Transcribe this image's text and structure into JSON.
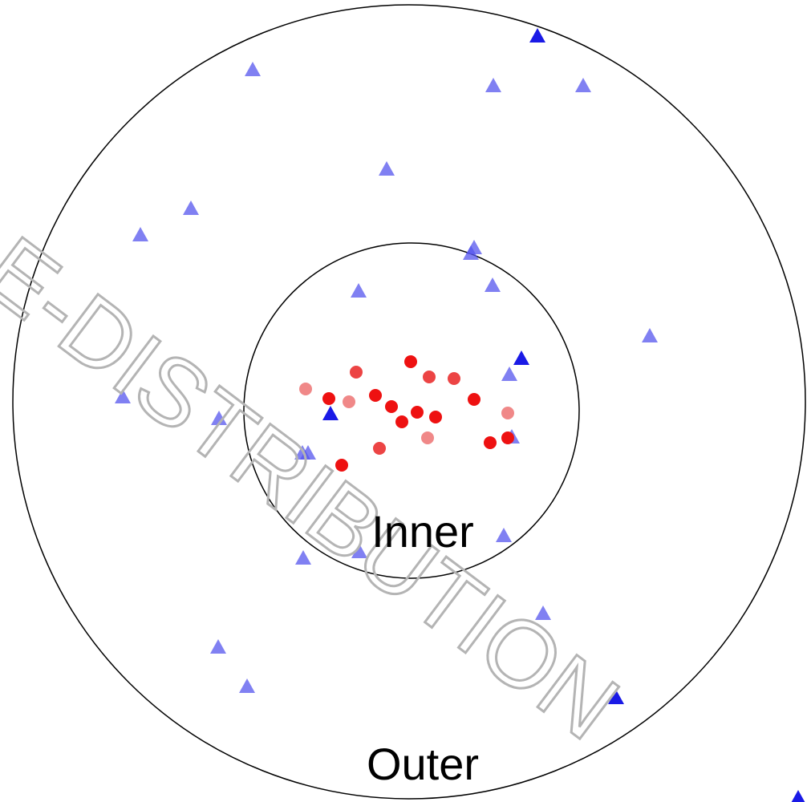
{
  "diagram": {
    "inner_label": "Inner",
    "outer_label": "Outer",
    "watermark": "E-DISTRIBUTION"
  }
}
